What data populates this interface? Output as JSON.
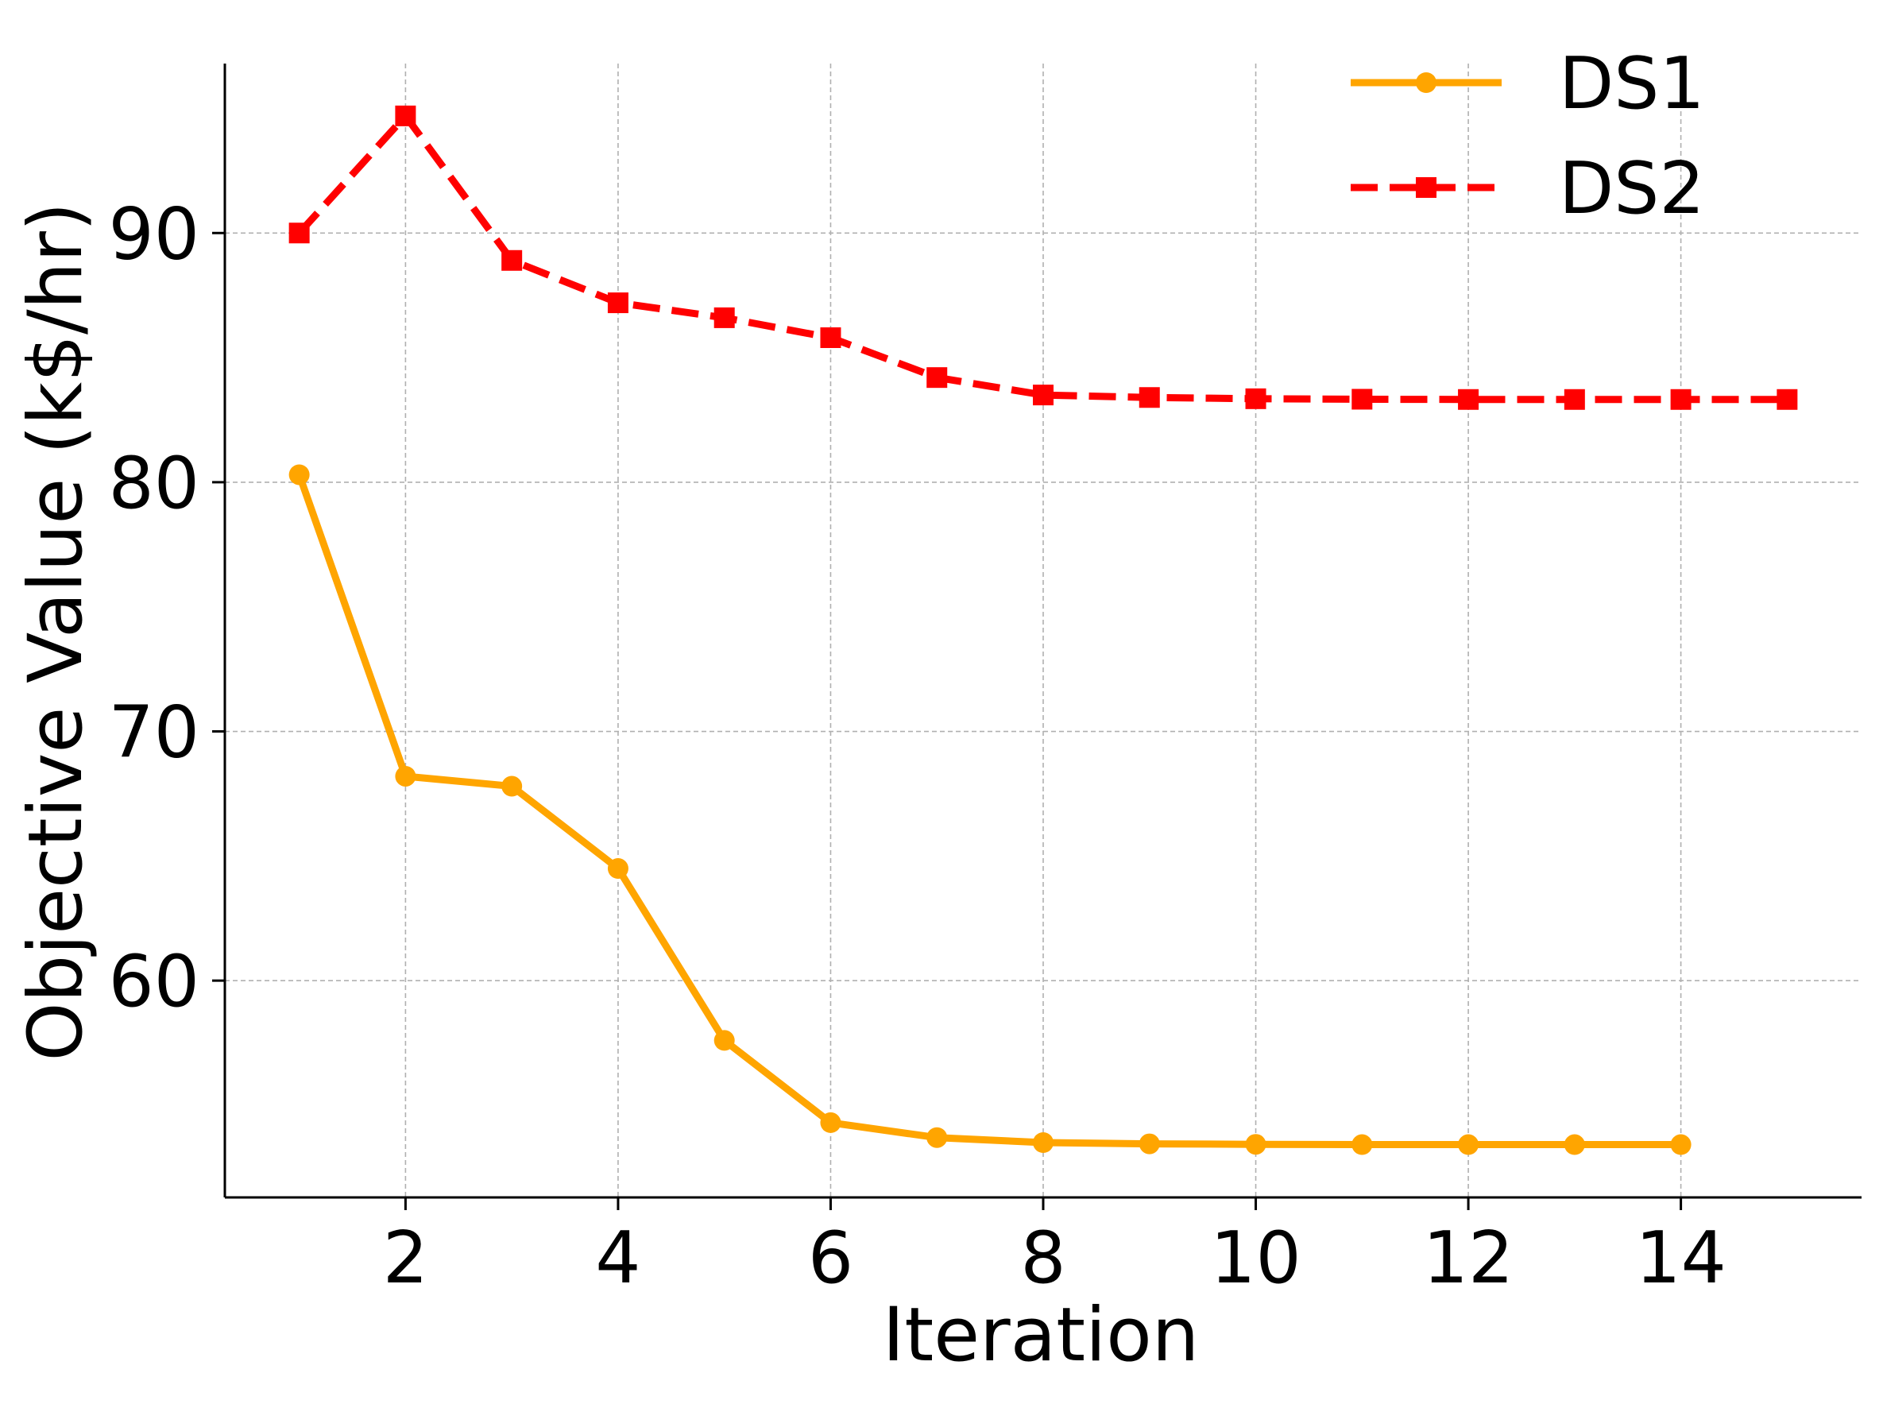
{
  "chart_data": {
    "type": "line",
    "title": "",
    "xlabel": "Iteration",
    "ylabel": "Objective Value (k$/hr)",
    "xlim": [
      0.3,
      15.7
    ],
    "ylim": [
      51.3,
      96.8
    ],
    "xticks": [
      2,
      4,
      6,
      8,
      10,
      12,
      14
    ],
    "yticks": [
      60,
      70,
      80,
      90
    ],
    "grid": true,
    "legend_position": "top-right",
    "series": [
      {
        "name": "DS1",
        "color": "#ffa500",
        "line_style": "solid",
        "marker": "circle",
        "x": [
          1,
          2,
          3,
          4,
          5,
          6,
          7,
          8,
          9,
          10,
          11,
          12,
          13,
          14
        ],
        "values": [
          80.3,
          68.2,
          67.8,
          64.5,
          57.6,
          54.3,
          53.7,
          53.5,
          53.45,
          53.43,
          53.42,
          53.42,
          53.42,
          53.42
        ]
      },
      {
        "name": "DS2",
        "color": "#ff0000",
        "line_style": "dashed",
        "marker": "square",
        "x": [
          1,
          2,
          3,
          4,
          5,
          6,
          7,
          8,
          9,
          10,
          11,
          12,
          13,
          14,
          15
        ],
        "values": [
          90.0,
          94.7,
          88.9,
          87.2,
          86.6,
          85.8,
          84.2,
          83.5,
          83.4,
          83.35,
          83.33,
          83.32,
          83.32,
          83.32,
          83.32
        ]
      }
    ]
  }
}
